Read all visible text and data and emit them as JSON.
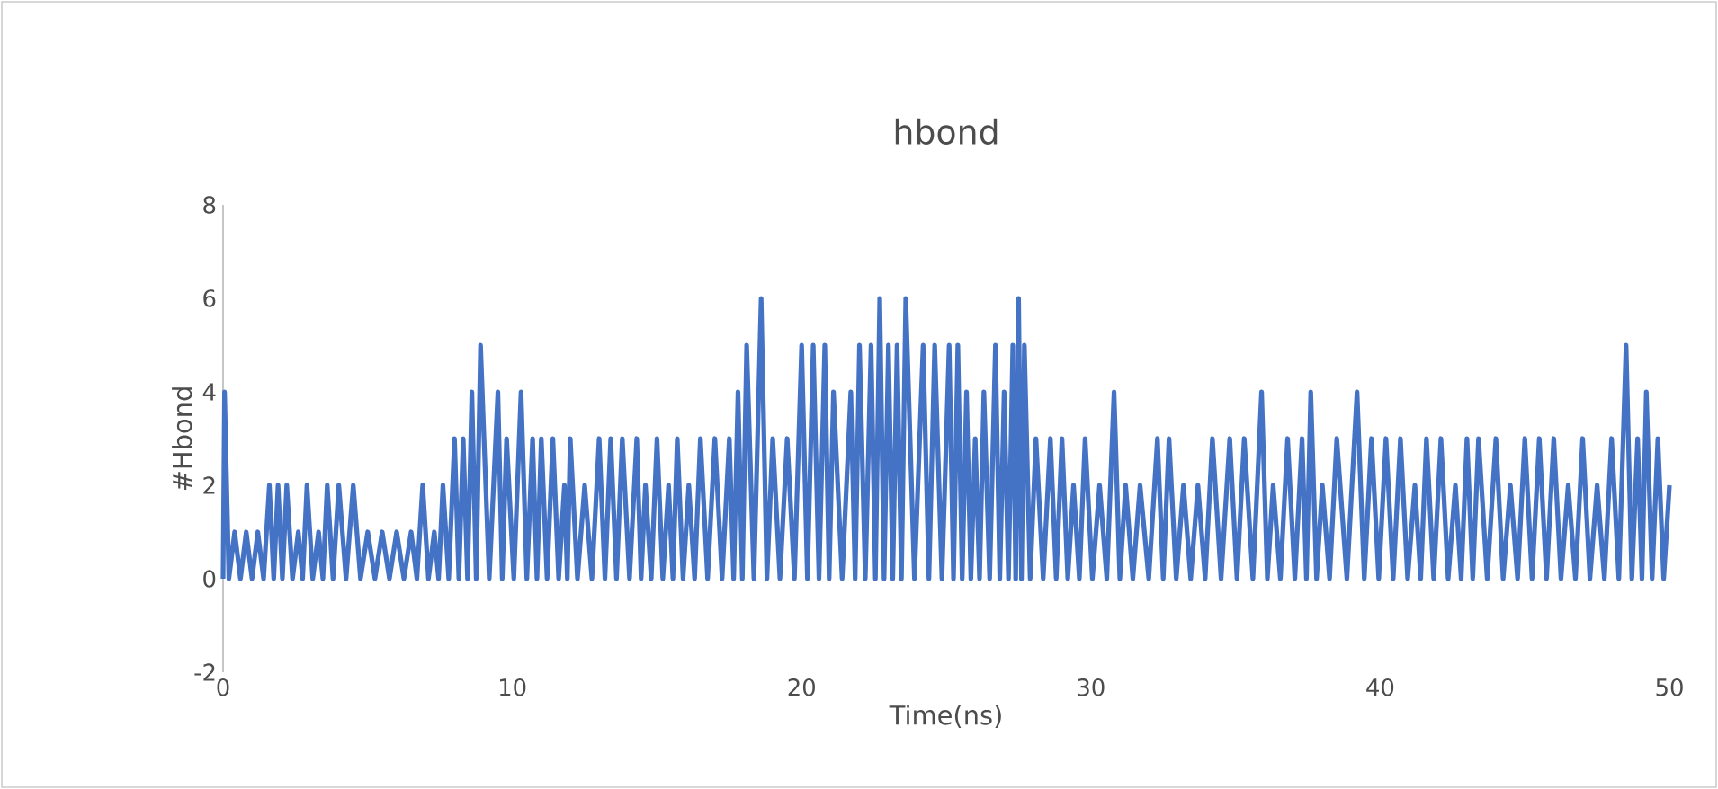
{
  "chart_data": {
    "type": "line",
    "title": "hbond",
    "xlabel": "Time(ns)",
    "ylabel": "#Hbond",
    "xlim": [
      0,
      50
    ],
    "xticks": [
      0,
      10,
      20,
      30,
      40,
      50
    ],
    "ylim": [
      -2,
      8
    ],
    "yticks": [
      -2,
      0,
      2,
      4,
      6,
      8
    ],
    "series": [
      {
        "color": "#4472c4",
        "x": [
          0,
          0.05,
          0.2,
          0.4,
          0.6,
          0.8,
          1.0,
          1.2,
          1.4,
          1.6,
          1.75,
          1.9,
          2.05,
          2.2,
          2.4,
          2.6,
          2.75,
          2.9,
          3.1,
          3.3,
          3.45,
          3.6,
          3.8,
          4.0,
          4.25,
          4.5,
          4.75,
          5.0,
          5.25,
          5.5,
          5.75,
          6.0,
          6.25,
          6.5,
          6.7,
          6.9,
          7.1,
          7.3,
          7.45,
          7.6,
          7.8,
          8.0,
          8.15,
          8.3,
          8.45,
          8.6,
          8.75,
          8.9,
          9.2,
          9.5,
          9.65,
          9.8,
          10.05,
          10.3,
          10.5,
          10.7,
          10.85,
          11.0,
          11.2,
          11.4,
          11.6,
          11.8,
          11.9,
          12.0,
          12.25,
          12.5,
          12.75,
          13.0,
          13.2,
          13.4,
          13.6,
          13.8,
          14.05,
          14.3,
          14.45,
          14.6,
          14.8,
          15.0,
          15.2,
          15.4,
          15.55,
          15.7,
          15.9,
          16.1,
          16.3,
          16.5,
          16.75,
          17.0,
          17.25,
          17.5,
          17.65,
          17.8,
          17.95,
          18.1,
          18.35,
          18.6,
          18.8,
          19.0,
          19.25,
          19.5,
          19.75,
          20.0,
          20.2,
          20.4,
          20.6,
          20.8,
          20.95,
          21.1,
          21.4,
          21.7,
          21.85,
          22.0,
          22.2,
          22.4,
          22.55,
          22.7,
          22.85,
          23.0,
          23.15,
          23.3,
          23.45,
          23.6,
          23.9,
          24.2,
          24.4,
          24.6,
          24.85,
          25.1,
          25.25,
          25.4,
          25.55,
          25.7,
          25.85,
          26.0,
          26.15,
          26.3,
          26.5,
          26.7,
          26.85,
          27.0,
          27.15,
          27.3,
          27.4,
          27.5,
          27.6,
          27.7,
          27.9,
          28.1,
          28.35,
          28.6,
          28.8,
          29.0,
          29.2,
          29.4,
          29.6,
          29.8,
          30.05,
          30.3,
          30.55,
          30.8,
          31.0,
          31.2,
          31.45,
          31.7,
          32.0,
          32.3,
          32.5,
          32.7,
          32.95,
          33.2,
          33.45,
          33.7,
          33.95,
          34.2,
          34.5,
          34.8,
          35.05,
          35.3,
          35.6,
          35.9,
          36.1,
          36.3,
          36.55,
          36.8,
          37.05,
          37.3,
          37.45,
          37.6,
          37.8,
          38.0,
          38.25,
          38.5,
          38.85,
          39.2,
          39.45,
          39.7,
          39.95,
          40.2,
          40.45,
          40.7,
          40.95,
          41.2,
          41.4,
          41.6,
          41.85,
          42.1,
          42.35,
          42.6,
          42.8,
          43.0,
          43.2,
          43.4,
          43.7,
          44.0,
          44.25,
          44.5,
          44.75,
          45.0,
          45.25,
          45.5,
          45.75,
          46.0,
          46.25,
          46.5,
          46.75,
          47.0,
          47.25,
          47.5,
          47.75,
          48.0,
          48.25,
          48.5,
          48.7,
          48.9,
          49.05,
          49.2,
          49.4,
          49.6,
          49.8,
          50.0
        ],
        "values": [
          0,
          4,
          0,
          1,
          0,
          1,
          0,
          1,
          0,
          2,
          0,
          2,
          0,
          2,
          0,
          1,
          0,
          2,
          0,
          1,
          0,
          2,
          0,
          2,
          0,
          2,
          0,
          1,
          0,
          1,
          0,
          1,
          0,
          1,
          0,
          2,
          0,
          1,
          0,
          2,
          0,
          3,
          0,
          3,
          0,
          4,
          0,
          5,
          0,
          4,
          0,
          3,
          0,
          4,
          0,
          3,
          0,
          3,
          0,
          3,
          0,
          2,
          0,
          3,
          0,
          2,
          0,
          3,
          0,
          3,
          0,
          3,
          0,
          3,
          0,
          2,
          0,
          3,
          0,
          2,
          0,
          3,
          0,
          2,
          0,
          3,
          0,
          3,
          0,
          3,
          0,
          4,
          0,
          5,
          0,
          6,
          0,
          3,
          0,
          3,
          0,
          5,
          0,
          5,
          0,
          5,
          0,
          4,
          0,
          4,
          0,
          5,
          0,
          5,
          0,
          6,
          0,
          5,
          0,
          5,
          0,
          6,
          0,
          5,
          0,
          5,
          0,
          5,
          0,
          5,
          0,
          4,
          0,
          3,
          0,
          4,
          0,
          5,
          0,
          4,
          0,
          5,
          0,
          6,
          0,
          5,
          0,
          3,
          0,
          3,
          0,
          3,
          0,
          2,
          0,
          3,
          0,
          2,
          0,
          4,
          0,
          2,
          0,
          2,
          0,
          3,
          0,
          3,
          0,
          2,
          0,
          2,
          0,
          3,
          0,
          3,
          0,
          3,
          0,
          4,
          0,
          2,
          0,
          3,
          0,
          3,
          0,
          4,
          0,
          2,
          0,
          3,
          0,
          4,
          0,
          3,
          0,
          3,
          0,
          3,
          0,
          2,
          0,
          3,
          0,
          3,
          0,
          2,
          0,
          3,
          0,
          3,
          0,
          3,
          0,
          2,
          0,
          3,
          0,
          3,
          0,
          3,
          0,
          2,
          0,
          3,
          0,
          2,
          0,
          3,
          0,
          5,
          0,
          3,
          0,
          4,
          0,
          3,
          0,
          2
        ]
      }
    ]
  }
}
